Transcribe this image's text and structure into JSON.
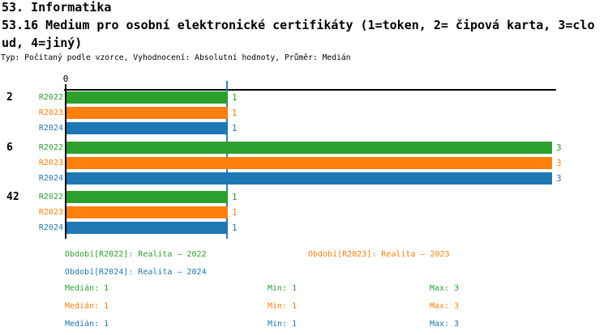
{
  "header": {
    "title_line1": "53. Informatika",
    "title_line2": "53.16 Medium pro osobní elektronické certifikáty (1=token, 2= čipová karta, 3=clo",
    "title_line3": "ud, 4=jiný)",
    "meta": "Typ: Počítaný podle vzorce, Vyhodnocení: Absolutní hodnoty, Průměr: Medián"
  },
  "colors": {
    "r2022": "#2ca02c",
    "r2023": "#ff7f0e",
    "r2024": "#1f77b4",
    "axis": "#000000",
    "median_line": "#2f7db8"
  },
  "chart_data": {
    "type": "bar",
    "orientation": "horizontal",
    "title": "53.16 Medium pro osobní elektronické certifikáty (1=token, 2= čipová karta, 3=cloud, 4=jiný)",
    "categories": [
      "2",
      "6",
      "42"
    ],
    "series": [
      {
        "name": "R2022",
        "color": "#2ca02c",
        "values": [
          1,
          3,
          1
        ]
      },
      {
        "name": "R2023",
        "color": "#ff7f0e",
        "values": [
          1,
          3,
          1
        ]
      },
      {
        "name": "R2024",
        "color": "#1f77b4",
        "values": [
          1,
          3,
          1
        ]
      }
    ],
    "xlim": [
      0,
      3.03
    ],
    "x_tick_labels": [
      "0"
    ],
    "grid": false,
    "median_reference_line_x": 1,
    "value_labels_shown": true,
    "stats_per_series": {
      "median": 1,
      "min": 1,
      "max": 3
    },
    "legend_position": "bottom"
  },
  "legend": {
    "items": [
      {
        "label": "Období[R2022]: Realita – 2022"
      },
      {
        "label": "Období[R2023]: Realita – 2023"
      },
      {
        "label": "Období[R2024]: Realita – 2024"
      }
    ]
  },
  "stats": {
    "rows": [
      {
        "median": "Medián: 1",
        "min": "Min: 1",
        "max": "Max: 3"
      },
      {
        "median": "Medián: 1",
        "min": "Min: 1",
        "max": "Max: 3"
      },
      {
        "median": "Medián: 1",
        "min": "Min: 1",
        "max": "Max: 3"
      }
    ]
  }
}
